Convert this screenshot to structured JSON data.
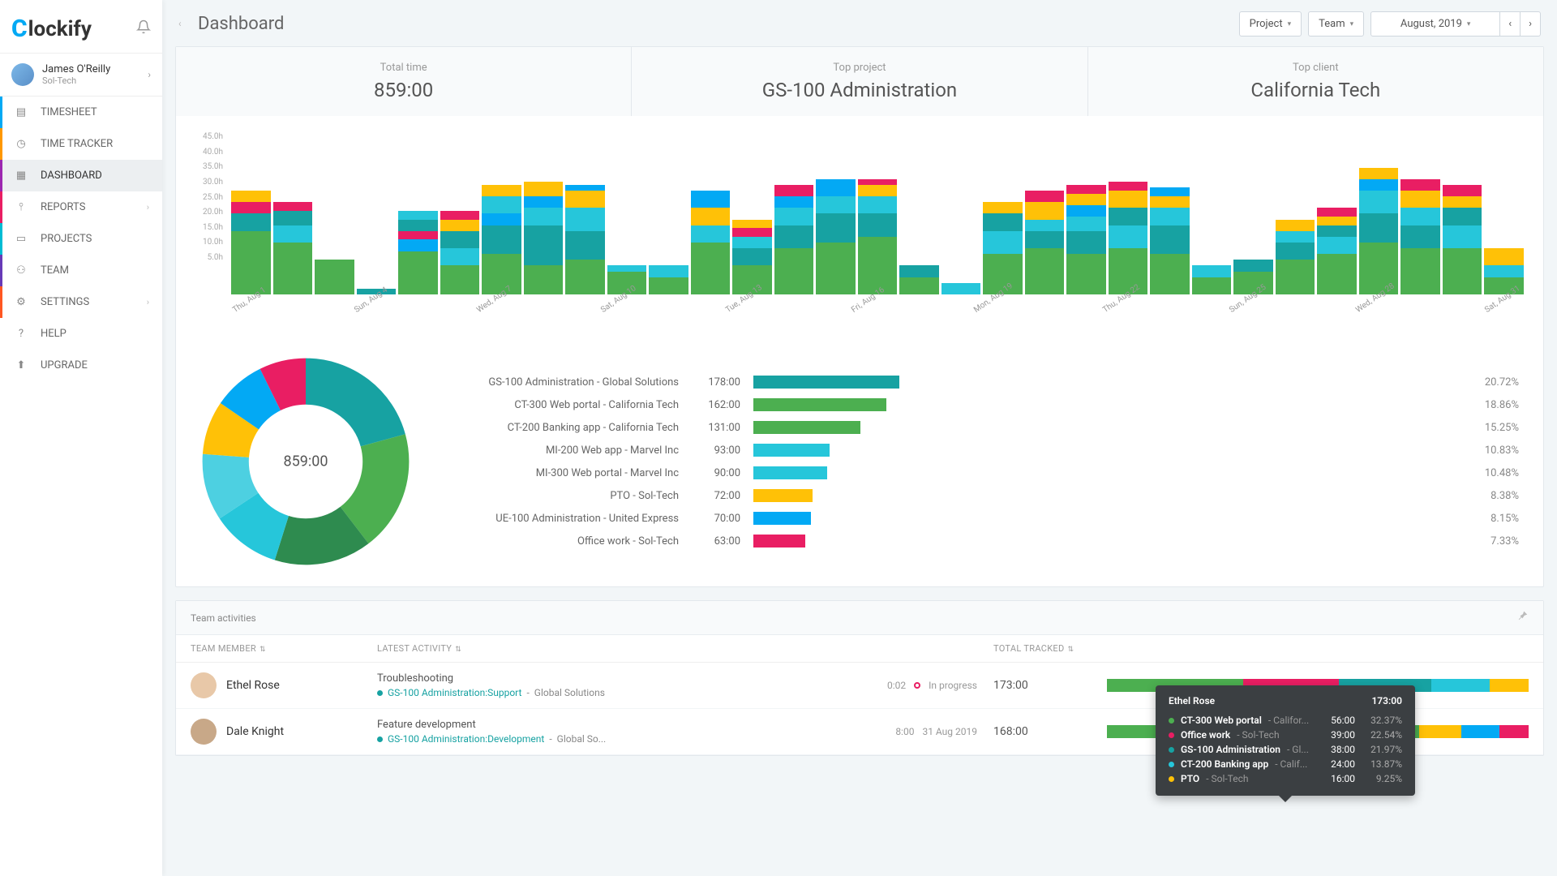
{
  "brand": "lockify",
  "user": {
    "name": "James O'Reilly",
    "org": "Sol-Tech"
  },
  "nav": [
    {
      "label": "TIMESHEET",
      "accent": "#03a9f4"
    },
    {
      "label": "TIME TRACKER",
      "accent": "#ff9800"
    },
    {
      "label": "DASHBOARD",
      "accent": "#9c27b0",
      "active": true
    },
    {
      "label": "REPORTS",
      "accent": "#e91e63",
      "expand": true
    },
    {
      "label": "PROJECTS",
      "accent": "#00bcd4"
    },
    {
      "label": "TEAM",
      "accent": "#673ab7"
    },
    {
      "label": "SETTINGS",
      "accent": "#ff5722",
      "expand": true
    },
    {
      "label": "HELP"
    },
    {
      "label": "UPGRADE"
    }
  ],
  "header": {
    "title": "Dashboard",
    "projectBtn": "Project",
    "teamBtn": "Team",
    "dateLabel": "August, 2019"
  },
  "summary": {
    "totalTimeLabel": "Total time",
    "totalTime": "859:00",
    "topProjectLabel": "Top project",
    "topProject": "GS-100 Administration",
    "topClientLabel": "Top client",
    "topClient": "California Tech"
  },
  "chart": {
    "ymax": 45,
    "yticks": [
      "45.0h",
      "40.0h",
      "35.0h",
      "30.0h",
      "25.0h",
      "20.0h",
      "15.0h",
      "10.0h",
      "5.0h"
    ],
    "xlabels": [
      "Thu, Aug 1",
      "",
      "",
      "Sun, Aug 4",
      "",
      "",
      "Wed, Aug 7",
      "",
      "",
      "Sat, Aug 10",
      "",
      "",
      "Tue, Aug 13",
      "",
      "",
      "Fri, Aug 16",
      "",
      "",
      "Mon, Aug 19",
      "",
      "",
      "Thu, Aug 22",
      "",
      "",
      "Sun, Aug 25",
      "",
      "",
      "Wed, Aug 28",
      "",
      "",
      "Sat, Aug 31"
    ],
    "colors": {
      "teal": "#17a2a2",
      "green": "#4caf50",
      "blue": "#03a9f4",
      "cyan": "#26c6da",
      "yellow": "#ffc107",
      "pink": "#e91e63",
      "dgreen": "#2e7d32"
    },
    "days": [
      [
        [
          "green",
          22
        ],
        [
          "teal",
          6
        ],
        [
          "pink",
          4
        ],
        [
          "yellow",
          4
        ]
      ],
      [
        [
          "green",
          18
        ],
        [
          "cyan",
          6
        ],
        [
          "teal",
          5
        ],
        [
          "pink",
          3
        ]
      ],
      [
        [
          "green",
          12
        ]
      ],
      [
        [
          "teal",
          2
        ]
      ],
      [
        [
          "green",
          15
        ],
        [
          "blue",
          4
        ],
        [
          "pink",
          3
        ],
        [
          "teal",
          4
        ],
        [
          "cyan",
          3
        ]
      ],
      [
        [
          "green",
          10
        ],
        [
          "cyan",
          6
        ],
        [
          "teal",
          6
        ],
        [
          "yellow",
          4
        ],
        [
          "pink",
          3
        ]
      ],
      [
        [
          "green",
          14
        ],
        [
          "teal",
          10
        ],
        [
          "blue",
          4
        ],
        [
          "cyan",
          6
        ],
        [
          "yellow",
          4
        ]
      ],
      [
        [
          "green",
          10
        ],
        [
          "teal",
          14
        ],
        [
          "cyan",
          6
        ],
        [
          "blue",
          4
        ],
        [
          "yellow",
          5
        ]
      ],
      [
        [
          "green",
          12
        ],
        [
          "teal",
          10
        ],
        [
          "cyan",
          8
        ],
        [
          "yellow",
          6
        ],
        [
          "blue",
          2
        ]
      ],
      [
        [
          "green",
          8
        ],
        [
          "cyan",
          2
        ]
      ],
      [
        [
          "green",
          6
        ],
        [
          "cyan",
          4
        ]
      ],
      [
        [
          "green",
          18
        ],
        [
          "cyan",
          6
        ],
        [
          "yellow",
          6
        ],
        [
          "blue",
          6
        ]
      ],
      [
        [
          "green",
          10
        ],
        [
          "teal",
          6
        ],
        [
          "cyan",
          4
        ],
        [
          "pink",
          3
        ],
        [
          "yellow",
          3
        ]
      ],
      [
        [
          "green",
          16
        ],
        [
          "teal",
          8
        ],
        [
          "cyan",
          6
        ],
        [
          "blue",
          4
        ],
        [
          "pink",
          4
        ]
      ],
      [
        [
          "green",
          18
        ],
        [
          "teal",
          10
        ],
        [
          "cyan",
          6
        ],
        [
          "blue",
          6
        ]
      ],
      [
        [
          "green",
          20
        ],
        [
          "teal",
          8
        ],
        [
          "cyan",
          6
        ],
        [
          "yellow",
          4
        ],
        [
          "pink",
          2
        ]
      ],
      [
        [
          "green",
          6
        ],
        [
          "teal",
          4
        ]
      ],
      [
        [
          "cyan",
          4
        ]
      ],
      [
        [
          "green",
          14
        ],
        [
          "cyan",
          8
        ],
        [
          "teal",
          6
        ],
        [
          "yellow",
          4
        ]
      ],
      [
        [
          "green",
          16
        ],
        [
          "teal",
          6
        ],
        [
          "cyan",
          4
        ],
        [
          "yellow",
          6
        ],
        [
          "pink",
          4
        ]
      ],
      [
        [
          "green",
          14
        ],
        [
          "teal",
          8
        ],
        [
          "cyan",
          5
        ],
        [
          "blue",
          4
        ],
        [
          "yellow",
          4
        ],
        [
          "pink",
          3
        ]
      ],
      [
        [
          "green",
          16
        ],
        [
          "cyan",
          8
        ],
        [
          "teal",
          6
        ],
        [
          "yellow",
          6
        ],
        [
          "pink",
          3
        ]
      ],
      [
        [
          "green",
          14
        ],
        [
          "teal",
          10
        ],
        [
          "cyan",
          6
        ],
        [
          "yellow",
          4
        ],
        [
          "blue",
          3
        ]
      ],
      [
        [
          "green",
          6
        ],
        [
          "cyan",
          4
        ]
      ],
      [
        [
          "green",
          8
        ],
        [
          "teal",
          4
        ]
      ],
      [
        [
          "green",
          12
        ],
        [
          "teal",
          6
        ],
        [
          "cyan",
          4
        ],
        [
          "yellow",
          4
        ]
      ],
      [
        [
          "green",
          14
        ],
        [
          "cyan",
          6
        ],
        [
          "teal",
          4
        ],
        [
          "yellow",
          3
        ],
        [
          "pink",
          3
        ]
      ],
      [
        [
          "green",
          18
        ],
        [
          "teal",
          10
        ],
        [
          "cyan",
          8
        ],
        [
          "blue",
          4
        ],
        [
          "yellow",
          4
        ]
      ],
      [
        [
          "green",
          16
        ],
        [
          "teal",
          8
        ],
        [
          "cyan",
          6
        ],
        [
          "yellow",
          6
        ],
        [
          "pink",
          4
        ]
      ],
      [
        [
          "green",
          16
        ],
        [
          "cyan",
          8
        ],
        [
          "teal",
          6
        ],
        [
          "yellow",
          4
        ],
        [
          "pink",
          4
        ]
      ],
      [
        [
          "green",
          6
        ],
        [
          "cyan",
          4
        ],
        [
          "yellow",
          6
        ]
      ]
    ]
  },
  "donut": {
    "centerLabel": "859:00",
    "slices": [
      {
        "color": "#17a2a2",
        "pct": 20.72
      },
      {
        "color": "#4caf50",
        "pct": 18.86
      },
      {
        "color": "#2e8b4f",
        "pct": 15.25
      },
      {
        "color": "#26c6da",
        "pct": 10.83
      },
      {
        "color": "#4dd0e1",
        "pct": 10.48
      },
      {
        "color": "#ffc107",
        "pct": 8.38
      },
      {
        "color": "#03a9f4",
        "pct": 8.15
      },
      {
        "color": "#e91e63",
        "pct": 7.33
      }
    ]
  },
  "projects": [
    {
      "name": "GS-100 Administration - Global Solutions",
      "time": "178:00",
      "pct": "20.72%",
      "color": "#17a2a2",
      "w": 20.72
    },
    {
      "name": "CT-300 Web portal - California Tech",
      "time": "162:00",
      "pct": "18.86%",
      "color": "#4caf50",
      "w": 18.86
    },
    {
      "name": "CT-200 Banking app - California Tech",
      "time": "131:00",
      "pct": "15.25%",
      "color": "#4caf50",
      "w": 15.25
    },
    {
      "name": "MI-200 Web app - Marvel Inc",
      "time": "93:00",
      "pct": "10.83%",
      "color": "#26c6da",
      "w": 10.83
    },
    {
      "name": "MI-300 Web portal - Marvel Inc",
      "time": "90:00",
      "pct": "10.48%",
      "color": "#26c6da",
      "w": 10.48
    },
    {
      "name": "PTO - Sol-Tech",
      "time": "72:00",
      "pct": "8.38%",
      "color": "#ffc107",
      "w": 8.38
    },
    {
      "name": "UE-100 Administration - United Express",
      "time": "70:00",
      "pct": "8.15%",
      "color": "#03a9f4",
      "w": 8.15
    },
    {
      "name": "Office work - Sol-Tech",
      "time": "63:00",
      "pct": "7.33%",
      "color": "#e91e63",
      "w": 7.33
    }
  ],
  "teamSection": {
    "title": "Team activities",
    "cols": {
      "member": "TEAM MEMBER",
      "activity": "LATEST ACTIVITY",
      "total": "TOTAL TRACKED"
    }
  },
  "teamRows": [
    {
      "name": "Ethel Rose",
      "avatar": "#e8c8a8",
      "title": "Troubleshooting",
      "proj": "GS-100 Administration:Support",
      "client": "Global Solutions",
      "dot": "#17a2a2",
      "meta1": "0:02",
      "live": true,
      "meta2": "In progress",
      "total": "173:00",
      "track": [
        [
          "#4caf50",
          32.37
        ],
        [
          "#e91e63",
          22.54
        ],
        [
          "#17a2a2",
          21.97
        ],
        [
          "#26c6da",
          13.87
        ],
        [
          "#ffc107",
          9.25
        ]
      ]
    },
    {
      "name": "Dale Knight",
      "avatar": "#c8a888",
      "title": "Feature development",
      "proj": "GS-100 Administration:Development",
      "client": "Global So...",
      "dot": "#17a2a2",
      "meta1": "8:00",
      "live": false,
      "meta2": "31 Aug 2019",
      "total": "168:00",
      "track": [
        [
          "#4caf50",
          26
        ],
        [
          "#17a2a2",
          20
        ],
        [
          "#26c6da",
          16
        ],
        [
          "#4caf50",
          12
        ],
        [
          "#ffc107",
          10
        ],
        [
          "#03a9f4",
          9
        ],
        [
          "#e91e63",
          7
        ]
      ]
    }
  ],
  "tooltip": {
    "name": "Ethel Rose",
    "total": "173:00",
    "rows": [
      {
        "dot": "#4caf50",
        "name": "CT-300 Web portal",
        "client": "Califor...",
        "time": "56:00",
        "pct": "32.37%"
      },
      {
        "dot": "#e91e63",
        "name": "Office work",
        "client": "Sol-Tech",
        "time": "39:00",
        "pct": "22.54%"
      },
      {
        "dot": "#17a2a2",
        "name": "GS-100 Administration",
        "client": "Gl...",
        "time": "38:00",
        "pct": "21.97%"
      },
      {
        "dot": "#26c6da",
        "name": "CT-200 Banking app",
        "client": "Calif...",
        "time": "24:00",
        "pct": "13.87%"
      },
      {
        "dot": "#ffc107",
        "name": "PTO",
        "client": "Sol-Tech",
        "time": "16:00",
        "pct": "9.25%"
      }
    ]
  }
}
